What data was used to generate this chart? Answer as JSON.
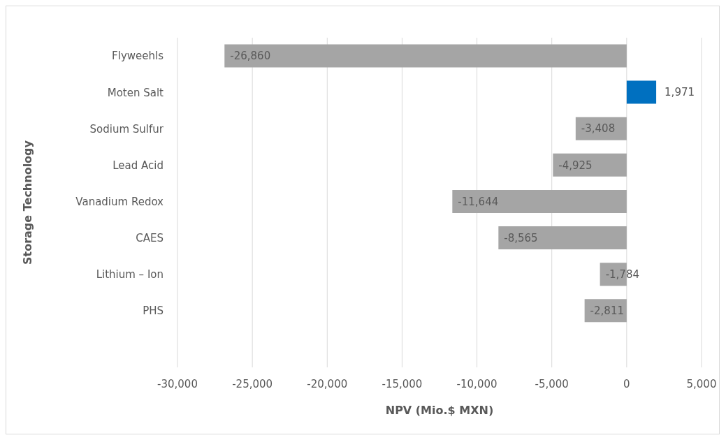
{
  "chart_data": {
    "type": "bar",
    "orientation": "horizontal",
    "xlabel": "NPV (Mio.$ MXN)",
    "ylabel": "Storage Technology",
    "categories": [
      "Flyweehls",
      "Moten Salt",
      "Sodium Sulfur",
      "Lead Acid",
      "Vanadium Redox",
      "CAES",
      "Lithium – Ion",
      "PHS"
    ],
    "values": [
      -26860,
      1971,
      -3408,
      -4925,
      -11644,
      -8565,
      -1784,
      -2811
    ],
    "colors": [
      "#a5a5a5",
      "#0070c0",
      "#a5a5a5",
      "#a5a5a5",
      "#a5a5a5",
      "#a5a5a5",
      "#a5a5a5",
      "#a5a5a5"
    ],
    "xlim": [
      -30000,
      5000
    ],
    "xticks": [
      {
        "value": -30000,
        "label": "-30,000"
      },
      {
        "value": -25000,
        "label": "-25,000"
      },
      {
        "value": -20000,
        "label": "-20,000"
      },
      {
        "value": -15000,
        "label": "-15,000"
      },
      {
        "value": -10000,
        "label": "-10,000"
      },
      {
        "value": -5000,
        "label": "-5,000"
      },
      {
        "value": 0,
        "label": "0"
      },
      {
        "value": 5000,
        "label": "5,000"
      }
    ],
    "value_labels": [
      "-26,860",
      "1,971",
      "-3,408",
      "-4,925",
      "-11,644",
      "-8,565",
      "-1,784",
      "-2,811"
    ],
    "grid": "x",
    "legend": false
  }
}
